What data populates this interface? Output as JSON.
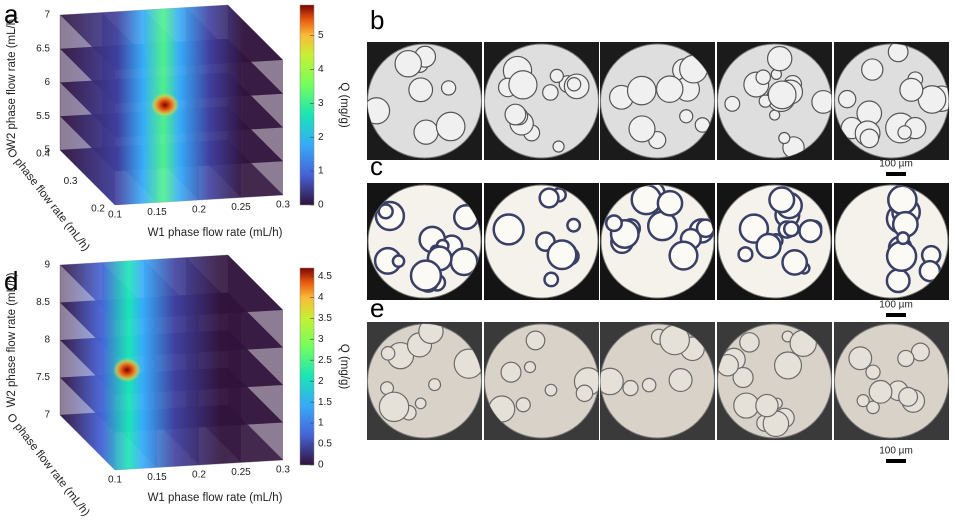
{
  "panels": {
    "a": {
      "label": "a",
      "z_axis_label": "W2 phase flow rate (mL/h)",
      "y_axis_label": "O phase flow rate (mL/h)",
      "x_axis_label": "W1 phase flow rate (mL/h)",
      "z_ticks": [
        5,
        5.5,
        6,
        6.5,
        7
      ],
      "y_ticks": [
        0.2,
        0.3,
        0.4
      ],
      "x_ticks": [
        0.1,
        0.15,
        0.2,
        0.25,
        0.3
      ],
      "colorbar_label": "Q (mg/g)",
      "colorbar_ticks": [
        0,
        1,
        2,
        3,
        4,
        5
      ]
    },
    "d": {
      "label": "d",
      "z_axis_label": "W2 phase flow rate (mL/h)",
      "y_axis_label": "O phase flow rate (mL/h)",
      "x_axis_label": "W1 phase flow rate (mL/h)",
      "z_ticks": [
        7,
        7.5,
        8,
        8.5,
        9
      ],
      "x_ticks": [
        0.1,
        0.15,
        0.2,
        0.25,
        0.3
      ],
      "colorbar_label": "Q (mg/g)",
      "colorbar_ticks": [
        0,
        0.5,
        1,
        1.5,
        2,
        2.5,
        3,
        3.5,
        4,
        4.5
      ]
    }
  },
  "images": {
    "b": {
      "label": "b",
      "scale_bar": "100 µm"
    },
    "c": {
      "label": "c",
      "scale_bar": "100 µm"
    },
    "e": {
      "label": "e",
      "scale_bar": "100 µm"
    }
  }
}
